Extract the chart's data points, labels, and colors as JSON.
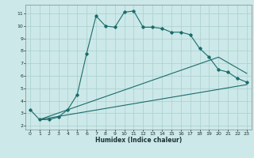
{
  "xlabel": "Humidex (Indice chaleur)",
  "bg_color": "#cce8e8",
  "line_color": "#1a6b6b",
  "grid_color": "#aacfcf",
  "xlim": [
    -0.5,
    23.5
  ],
  "ylim": [
    1.7,
    11.7
  ],
  "xticks": [
    0,
    1,
    2,
    3,
    4,
    5,
    6,
    7,
    8,
    9,
    10,
    11,
    12,
    13,
    14,
    15,
    16,
    17,
    18,
    19,
    20,
    21,
    22,
    23
  ],
  "yticks": [
    2,
    3,
    4,
    5,
    6,
    7,
    8,
    9,
    10,
    11
  ],
  "curve1_x": [
    0,
    1,
    2,
    3,
    4,
    5,
    6,
    7,
    8,
    9,
    10,
    11,
    12,
    13,
    14,
    15,
    16,
    17,
    18,
    19,
    20,
    21,
    22,
    23
  ],
  "curve1_y": [
    3.3,
    2.5,
    2.5,
    2.7,
    3.3,
    4.5,
    7.8,
    10.8,
    10.0,
    9.9,
    11.1,
    11.2,
    9.9,
    9.9,
    9.8,
    9.5,
    9.5,
    9.3,
    8.2,
    7.5,
    6.5,
    6.3,
    5.8,
    5.5
  ],
  "curve2_x": [
    1,
    20,
    23
  ],
  "curve2_y": [
    2.5,
    7.5,
    6.2
  ],
  "curve3_x": [
    1,
    23
  ],
  "curve3_y": [
    2.5,
    5.3
  ]
}
